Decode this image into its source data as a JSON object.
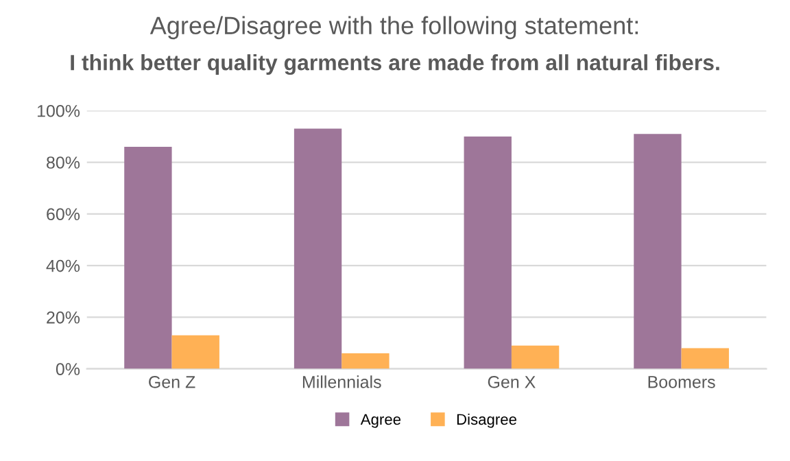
{
  "chart_data": {
    "type": "bar",
    "title": "Agree/Disagree with the following statement:",
    "subtitle": "I think better quality garments are made from all natural fibers.",
    "categories": [
      "Gen Z",
      "Millennials",
      "Gen X",
      "Boomers"
    ],
    "series": [
      {
        "name": "Agree",
        "color": "#9e7699",
        "values": [
          86,
          93,
          90,
          91
        ]
      },
      {
        "name": "Disagree",
        "color": "#ffb155",
        "values": [
          13,
          6,
          9,
          8
        ]
      }
    ],
    "ylim": [
      0,
      100
    ],
    "yticks": [
      {
        "value": 0,
        "label": "0%"
      },
      {
        "value": 20,
        "label": "20%"
      },
      {
        "value": 40,
        "label": "40%"
      },
      {
        "value": 60,
        "label": "60%"
      },
      {
        "value": 80,
        "label": "80%"
      },
      {
        "value": 100,
        "label": "100%"
      }
    ],
    "grid": "y",
    "legend": "bottom"
  }
}
